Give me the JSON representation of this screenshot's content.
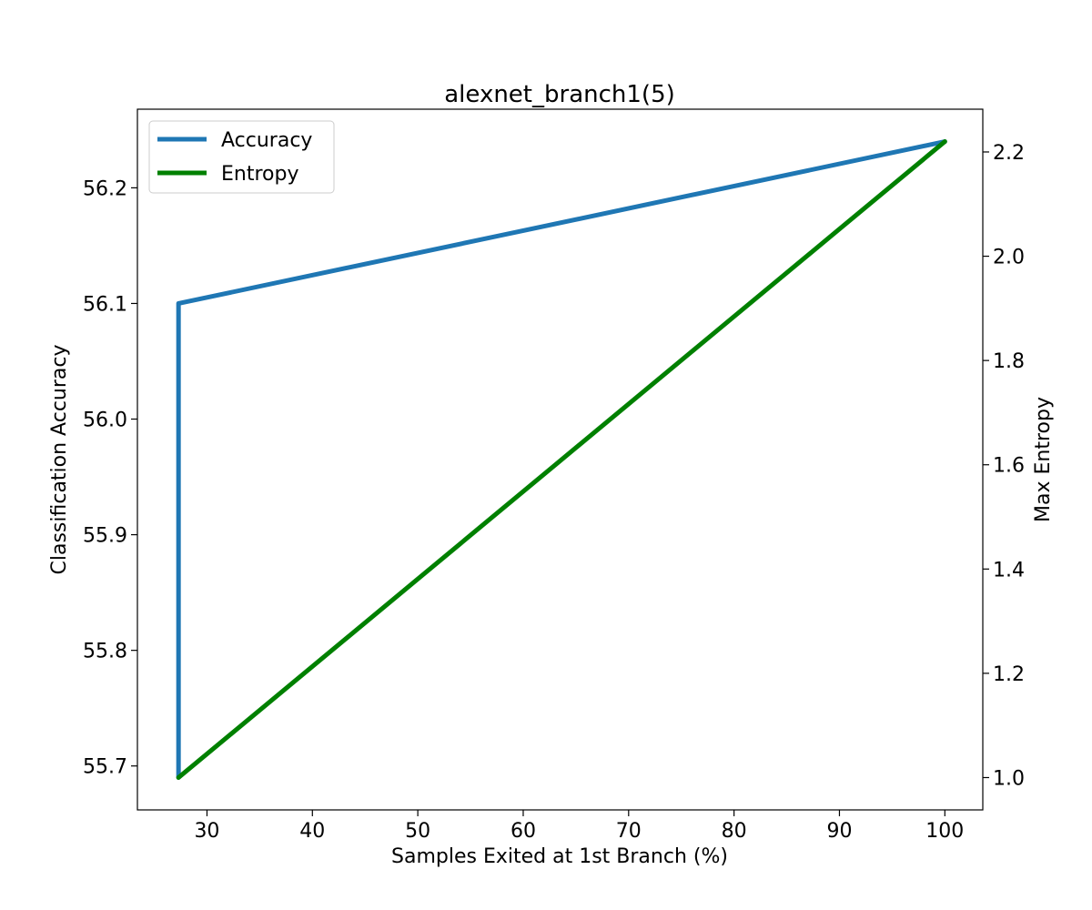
{
  "chart_data": {
    "type": "line",
    "title": "alexnet_branch1(5)",
    "xlabel": "Samples Exited at 1st Branch (%)",
    "ylabel": "Classification Accuracy",
    "y2label": "Max Entropy",
    "xlim": [
      23.4,
      103.6
    ],
    "ylim": [
      55.662,
      56.268
    ],
    "y2lim": [
      0.938,
      2.282
    ],
    "x_ticks": [
      30,
      40,
      50,
      60,
      70,
      80,
      90,
      100
    ],
    "y_ticks": [
      55.7,
      55.8,
      55.9,
      56.0,
      56.1,
      56.2
    ],
    "y2_ticks": [
      1.0,
      1.2,
      1.4,
      1.6,
      1.8,
      2.0,
      2.2
    ],
    "legend_position": "upper-left",
    "grid": false,
    "series": [
      {
        "name": "Accuracy",
        "axis": "left",
        "color": "#1f77b4",
        "x": [
          100.0,
          27.3,
          27.3
        ],
        "y": [
          56.24,
          56.1,
          55.69
        ]
      },
      {
        "name": "Entropy",
        "axis": "right",
        "color": "#008000",
        "x": [
          27.3,
          100.0
        ],
        "y": [
          1.0,
          2.22
        ]
      }
    ]
  }
}
